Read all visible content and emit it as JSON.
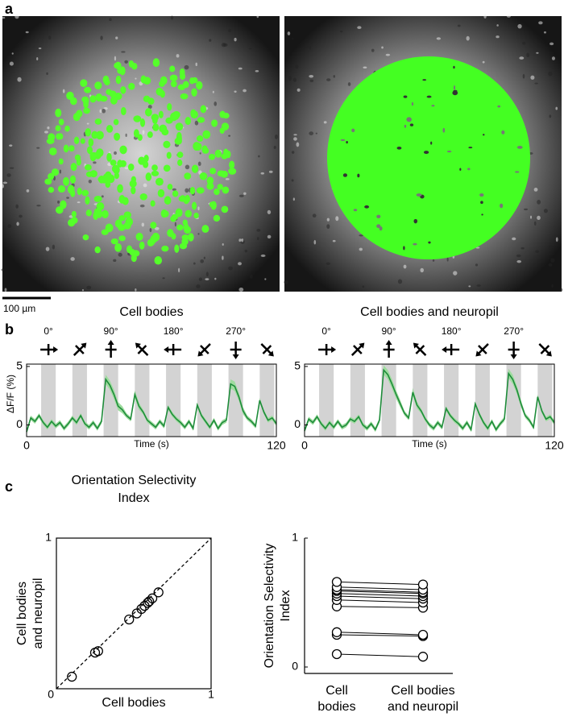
{
  "panel_labels": [
    "a",
    "b",
    "c"
  ],
  "scale_bar": "100 µm",
  "chart_data": [
    {
      "type": "trace",
      "title": "Cell bodies",
      "xlabel": "Time (s)",
      "ylabel": "ΔF/F (%)",
      "xlim": [
        0,
        120
      ],
      "xticks": [
        0,
        120
      ],
      "ylim": [
        -1,
        5.2
      ],
      "yticks": [
        0,
        5
      ],
      "color": "#1e8c3a",
      "band_color": "#9fdc9f",
      "stimulus_color": "#d3d3d3",
      "stimulus_periods": [
        [
          7,
          14
        ],
        [
          22,
          29
        ],
        [
          37,
          44
        ],
        [
          52,
          59
        ],
        [
          67,
          74
        ],
        [
          82,
          89
        ],
        [
          97,
          104
        ],
        [
          112,
          119
        ]
      ],
      "directions": [
        0,
        45,
        90,
        135,
        180,
        225,
        270,
        315
      ],
      "stimulus_labels": [
        "0°",
        null,
        "90°",
        null,
        "180°",
        null,
        "270°",
        null
      ],
      "x": [
        0,
        2,
        4,
        6,
        8,
        10,
        12,
        14,
        16,
        18,
        20,
        22,
        24,
        26,
        28,
        30,
        32,
        34,
        36,
        38,
        40,
        42,
        44,
        46,
        48,
        50,
        52,
        54,
        56,
        58,
        60,
        62,
        64,
        66,
        68,
        70,
        72,
        74,
        76,
        78,
        80,
        82,
        84,
        86,
        88,
        90,
        92,
        94,
        96,
        98,
        100,
        102,
        104,
        106,
        108,
        110,
        112,
        114,
        116,
        118,
        120
      ],
      "values": [
        -0.6,
        0.6,
        0.3,
        0.8,
        0.2,
        -0.2,
        0.3,
        -0.1,
        0.2,
        -0.3,
        0.1,
        0.6,
        0.2,
        0.8,
        0.1,
        -0.2,
        0.2,
        -0.3,
        0.3,
        3.9,
        3.4,
        2.6,
        1.6,
        1.3,
        0.8,
        0.5,
        2.6,
        1.6,
        1.1,
        0.4,
        0.1,
        -0.2,
        0.3,
        -0.1,
        1.5,
        0.9,
        0.5,
        0.2,
        -0.2,
        0.3,
        -0.3,
        1.7,
        0.8,
        0.3,
        -0.2,
        0.4,
        -0.3,
        0.2,
        0.4,
        3.5,
        3.3,
        2.4,
        1.2,
        0.6,
        0.3,
        -0.1,
        2.1,
        1.1,
        0.4,
        0.6,
        0.1
      ],
      "error": [
        0.2,
        0.2,
        0.2,
        0.2,
        0.2,
        0.2,
        0.2,
        0.2,
        0.2,
        0.2,
        0.2,
        0.2,
        0.2,
        0.2,
        0.2,
        0.2,
        0.2,
        0.2,
        0.2,
        0.4,
        0.4,
        0.4,
        0.35,
        0.3,
        0.2,
        0.2,
        0.35,
        0.3,
        0.2,
        0.2,
        0.2,
        0.2,
        0.2,
        0.2,
        0.2,
        0.2,
        0.2,
        0.2,
        0.2,
        0.2,
        0.2,
        0.2,
        0.2,
        0.2,
        0.2,
        0.2,
        0.2,
        0.2,
        0.2,
        0.4,
        0.4,
        0.35,
        0.3,
        0.2,
        0.2,
        0.2,
        0.2,
        0.2,
        0.2,
        0.2,
        0.2
      ]
    },
    {
      "type": "trace",
      "title": "Cell bodies and neuropil",
      "xlabel": "Time (s)",
      "xlim": [
        0,
        120
      ],
      "xticks": [
        0,
        120
      ],
      "ylim": [
        -1,
        5.2
      ],
      "yticks": [
        0,
        5
      ],
      "color": "#1e8c3a",
      "band_color": "#9fdc9f",
      "stimulus_color": "#d3d3d3",
      "stimulus_periods": [
        [
          7,
          14
        ],
        [
          22,
          29
        ],
        [
          37,
          44
        ],
        [
          52,
          59
        ],
        [
          67,
          74
        ],
        [
          82,
          89
        ],
        [
          97,
          104
        ],
        [
          112,
          119
        ]
      ],
      "directions": [
        0,
        45,
        90,
        135,
        180,
        225,
        270,
        315
      ],
      "stimulus_labels": [
        "0°",
        null,
        "90°",
        null,
        "180°",
        null,
        "270°",
        null
      ],
      "x": [
        0,
        2,
        4,
        6,
        8,
        10,
        12,
        14,
        16,
        18,
        20,
        22,
        24,
        26,
        28,
        30,
        32,
        34,
        36,
        38,
        40,
        42,
        44,
        46,
        48,
        50,
        52,
        54,
        56,
        58,
        60,
        62,
        64,
        66,
        68,
        70,
        72,
        74,
        76,
        78,
        80,
        82,
        84,
        86,
        88,
        90,
        92,
        94,
        96,
        98,
        100,
        102,
        104,
        106,
        108,
        110,
        112,
        114,
        116,
        118,
        120
      ],
      "values": [
        -0.5,
        0.5,
        0.2,
        0.7,
        0.1,
        -0.3,
        0.2,
        -0.2,
        0.3,
        -0.2,
        0.0,
        0.5,
        0.3,
        0.7,
        0.0,
        -0.3,
        0.1,
        -0.4,
        0.4,
        4.7,
        4.3,
        3.5,
        2.6,
        1.8,
        1.0,
        0.6,
        2.8,
        1.7,
        1.2,
        0.5,
        0.0,
        -0.3,
        0.2,
        -0.2,
        1.4,
        0.8,
        0.4,
        0.1,
        -0.3,
        0.2,
        -0.4,
        1.8,
        0.9,
        0.2,
        -0.3,
        0.3,
        -0.4,
        0.1,
        0.5,
        4.4,
        3.9,
        3.0,
        1.8,
        0.8,
        0.4,
        -0.2,
        2.4,
        1.2,
        0.5,
        0.7,
        0.2
      ],
      "error": [
        0.2,
        0.2,
        0.2,
        0.2,
        0.2,
        0.2,
        0.2,
        0.2,
        0.2,
        0.2,
        0.2,
        0.2,
        0.2,
        0.2,
        0.2,
        0.2,
        0.2,
        0.2,
        0.2,
        0.4,
        0.4,
        0.4,
        0.35,
        0.3,
        0.2,
        0.2,
        0.35,
        0.3,
        0.2,
        0.2,
        0.2,
        0.2,
        0.2,
        0.2,
        0.2,
        0.2,
        0.2,
        0.2,
        0.2,
        0.2,
        0.2,
        0.2,
        0.2,
        0.2,
        0.2,
        0.2,
        0.2,
        0.2,
        0.2,
        0.4,
        0.4,
        0.35,
        0.3,
        0.2,
        0.2,
        0.2,
        0.2,
        0.2,
        0.2,
        0.2,
        0.2
      ]
    },
    {
      "type": "scatter",
      "title": [
        "Orientation Selectivity",
        "Index"
      ],
      "xlabel": "Cell bodies",
      "ylabel": [
        "Cell bodies",
        "and neuropil"
      ],
      "xlim": [
        0,
        1
      ],
      "ylim": [
        0,
        1
      ],
      "xticks": [
        0,
        1
      ],
      "yticks": [
        1
      ],
      "diagonal": true,
      "x": [
        0.1,
        0.25,
        0.27,
        0.47,
        0.52,
        0.55,
        0.57,
        0.59,
        0.6,
        0.62,
        0.66
      ],
      "y": [
        0.08,
        0.24,
        0.25,
        0.46,
        0.5,
        0.53,
        0.55,
        0.57,
        0.58,
        0.6,
        0.64
      ]
    },
    {
      "type": "paired",
      "ylabel": [
        "Orientation Selectivity",
        "Index"
      ],
      "categories": [
        [
          "Cell",
          "bodies"
        ],
        [
          "Cell bodies",
          "and neuropil"
        ]
      ],
      "ylim": [
        -0.05,
        1
      ],
      "yticks": [
        0,
        1
      ],
      "values": [
        [
          0.1,
          0.25,
          0.27,
          0.47,
          0.52,
          0.55,
          0.57,
          0.59,
          0.6,
          0.62,
          0.66
        ],
        [
          0.08,
          0.24,
          0.25,
          0.46,
          0.5,
          0.53,
          0.55,
          0.57,
          0.58,
          0.6,
          0.64
        ]
      ]
    }
  ]
}
